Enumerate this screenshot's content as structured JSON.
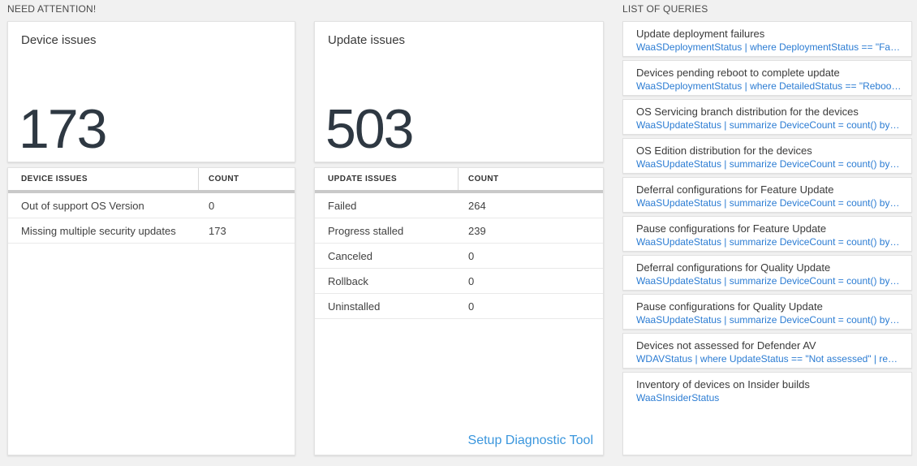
{
  "need_attention": {
    "section_title": "NEED ATTENTION!",
    "device_card": {
      "title": "Device issues",
      "big_number": "173",
      "table": {
        "col1_header": "DEVICE ISSUES",
        "col2_header": "COUNT",
        "rows": [
          {
            "label": "Out of support OS Version",
            "count": "0"
          },
          {
            "label": "Missing multiple security updates",
            "count": "173"
          }
        ]
      }
    },
    "update_card": {
      "title": "Update issues",
      "big_number": "503",
      "table": {
        "col1_header": "UPDATE ISSUES",
        "col2_header": "COUNT",
        "rows": [
          {
            "label": "Failed",
            "count": "264"
          },
          {
            "label": "Progress stalled",
            "count": "239"
          },
          {
            "label": "Canceled",
            "count": "0"
          },
          {
            "label": "Rollback",
            "count": "0"
          },
          {
            "label": "Uninstalled",
            "count": "0"
          }
        ]
      },
      "footer_link": "Setup Diagnostic Tool"
    }
  },
  "queries": {
    "section_title": "LIST OF QUERIES",
    "items": [
      {
        "title": "Update deployment failures",
        "query": "WaaSDeploymentStatus | where DeploymentStatus == \"Failed\" |..."
      },
      {
        "title": "Devices pending reboot to complete update",
        "query": "WaaSDeploymentStatus | where DetailedStatus == \"Reboot pend..."
      },
      {
        "title": "OS Servicing branch distribution for the devices",
        "query": "WaaSUpdateStatus | summarize DeviceCount = count() by OSSer..."
      },
      {
        "title": "OS Edition distribution for the devices",
        "query": "WaaSUpdateStatus | summarize DeviceCount = count() by OSEdit..."
      },
      {
        "title": "Deferral configurations for Feature Update",
        "query": "WaaSUpdateStatus | summarize DeviceCount = count() by Featur..."
      },
      {
        "title": "Pause configurations for Feature Update",
        "query": "WaaSUpdateStatus | summarize DeviceCount = count() by Featur..."
      },
      {
        "title": "Deferral configurations for Quality Update",
        "query": "WaaSUpdateStatus | summarize DeviceCount = count() by Qualit..."
      },
      {
        "title": "Pause configurations for Quality Update",
        "query": "WaaSUpdateStatus | summarize DeviceCount = count() by Qualit..."
      },
      {
        "title": "Devices not assessed for Defender AV",
        "query": "WDAVStatus | where UpdateStatus == \"Not assessed\" | render ta..."
      },
      {
        "title": "Inventory of devices on Insider builds",
        "query": "WaaSInsiderStatus"
      }
    ]
  },
  "colors": {
    "background": "#f1f1f1",
    "card_background": "#ffffff",
    "big_number": "#2e3842",
    "query_link_blue": "#2b7cd3",
    "footer_link_blue": "#3a96dd",
    "table_header_bar": "#c9c9c9"
  }
}
